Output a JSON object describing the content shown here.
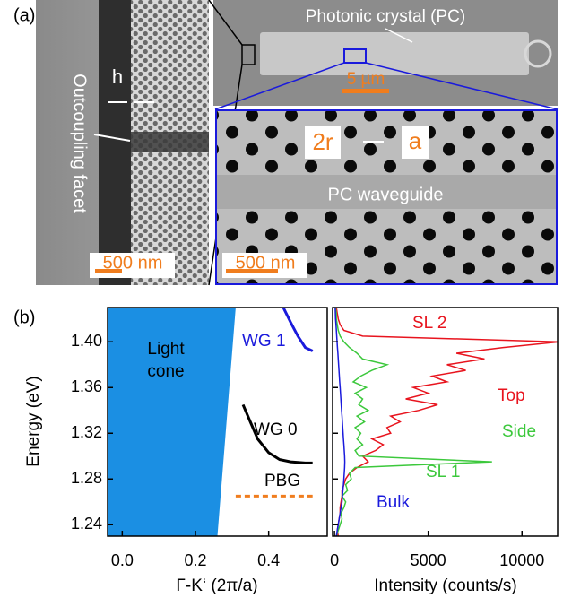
{
  "figure": {
    "panel_labels": [
      "(a)",
      "(b)"
    ],
    "sem": {
      "facet_label": "Outcoupling facet",
      "h_label": "h",
      "pc_label": "Photonic crystal (PC)",
      "overview_scale": "5 µm",
      "radius_label": "2r",
      "pitch_label": "a",
      "waveguide_label": "PC waveguide",
      "facet_scale": "500 nm",
      "detail_scale": "500 nm"
    }
  },
  "chart_data": [
    {
      "type": "line",
      "ylabel": "Energy (eV)",
      "xlabel": "Γ-K‘ (2π/a)",
      "xlim": [
        -0.04,
        0.56
      ],
      "ylim": [
        1.23,
        1.43
      ],
      "xticks": [
        {
          "value": 0,
          "label": "0.0"
        },
        0.2,
        0.4
      ],
      "yticks": [
        1.24,
        1.28,
        1.32,
        1.36,
        {
          "value": 1.4,
          "label": "1.40"
        }
      ],
      "light_cone": {
        "name": "Light cone",
        "color": "#1b8fe3",
        "x": [
          0.26,
          0.31
        ],
        "y": [
          1.23,
          1.43
        ]
      },
      "series": [
        {
          "name": "WG 1",
          "color": "#1a1adc",
          "x": [
            0.44,
            0.46,
            0.48,
            0.5,
            0.52
          ],
          "values": [
            1.43,
            1.417,
            1.405,
            1.395,
            1.392
          ]
        },
        {
          "name": "WG 0",
          "color": "#000000",
          "x": [
            0.33,
            0.35,
            0.37,
            0.4,
            0.43,
            0.46,
            0.5,
            0.52
          ],
          "values": [
            1.345,
            1.33,
            1.315,
            1.303,
            1.297,
            1.295,
            1.294,
            1.294
          ]
        },
        {
          "name": "PBG",
          "color": "#f07d1e",
          "dashed": true,
          "x": [
            0.31,
            0.52
          ],
          "values": [
            1.265,
            1.265
          ]
        }
      ]
    },
    {
      "type": "line",
      "xlabel": "Intensity (counts/s)",
      "xlim": [
        -100,
        11900
      ],
      "ylim": [
        1.23,
        1.43
      ],
      "xticks": [
        0,
        5000,
        10000
      ],
      "y": [
        1.23,
        1.235,
        1.24,
        1.245,
        1.25,
        1.255,
        1.26,
        1.265,
        1.27,
        1.275,
        1.28,
        1.285,
        1.29,
        1.295,
        1.3,
        1.305,
        1.31,
        1.315,
        1.32,
        1.325,
        1.33,
        1.335,
        1.34,
        1.345,
        1.35,
        1.355,
        1.36,
        1.365,
        1.37,
        1.375,
        1.38,
        1.385,
        1.39,
        1.395,
        1.4,
        1.405,
        1.41,
        1.415,
        1.42,
        1.425,
        1.43
      ],
      "series": [
        {
          "name": "Top",
          "color": "#e8141e",
          "values": [
            200,
            150,
            200,
            250,
            300,
            300,
            350,
            400,
            400,
            500,
            600,
            800,
            1200,
            1800,
            1500,
            2200,
            2600,
            2000,
            3000,
            2800,
            3500,
            3000,
            4500,
            5500,
            3800,
            5000,
            4200,
            6000,
            5200,
            7000,
            6000,
            8000,
            6500,
            9000,
            12000,
            1500,
            500,
            300,
            200,
            150,
            100
          ]
        },
        {
          "name": "Side",
          "color": "#3cc83c",
          "values": [
            100,
            200,
            300,
            400,
            350,
            500,
            600,
            400,
            700,
            600,
            900,
            800,
            1100,
            8400,
            1300,
            1100,
            1500,
            1200,
            1400,
            1100,
            1600,
            1200,
            1800,
            1300,
            1500,
            1100,
            1700,
            1000,
            1400,
            2000,
            2800,
            1500,
            1200,
            800,
            500,
            300,
            200,
            150,
            100,
            100,
            50
          ]
        },
        {
          "name": "Bulk",
          "color": "#1a1adc",
          "values": [
            100,
            150,
            200,
            250,
            300,
            350,
            400,
            420,
            450,
            480,
            500,
            520,
            540,
            550,
            540,
            520,
            500,
            480,
            460,
            440,
            420,
            400,
            380,
            360,
            340,
            320,
            300,
            280,
            260,
            240,
            220,
            200,
            180,
            160,
            140,
            120,
            100,
            80,
            60,
            50,
            40
          ]
        }
      ],
      "annotations": [
        {
          "text": "SL 2",
          "color": "#e8141e"
        },
        {
          "text": "SL 1",
          "color": "#3cc83c"
        }
      ]
    }
  ]
}
